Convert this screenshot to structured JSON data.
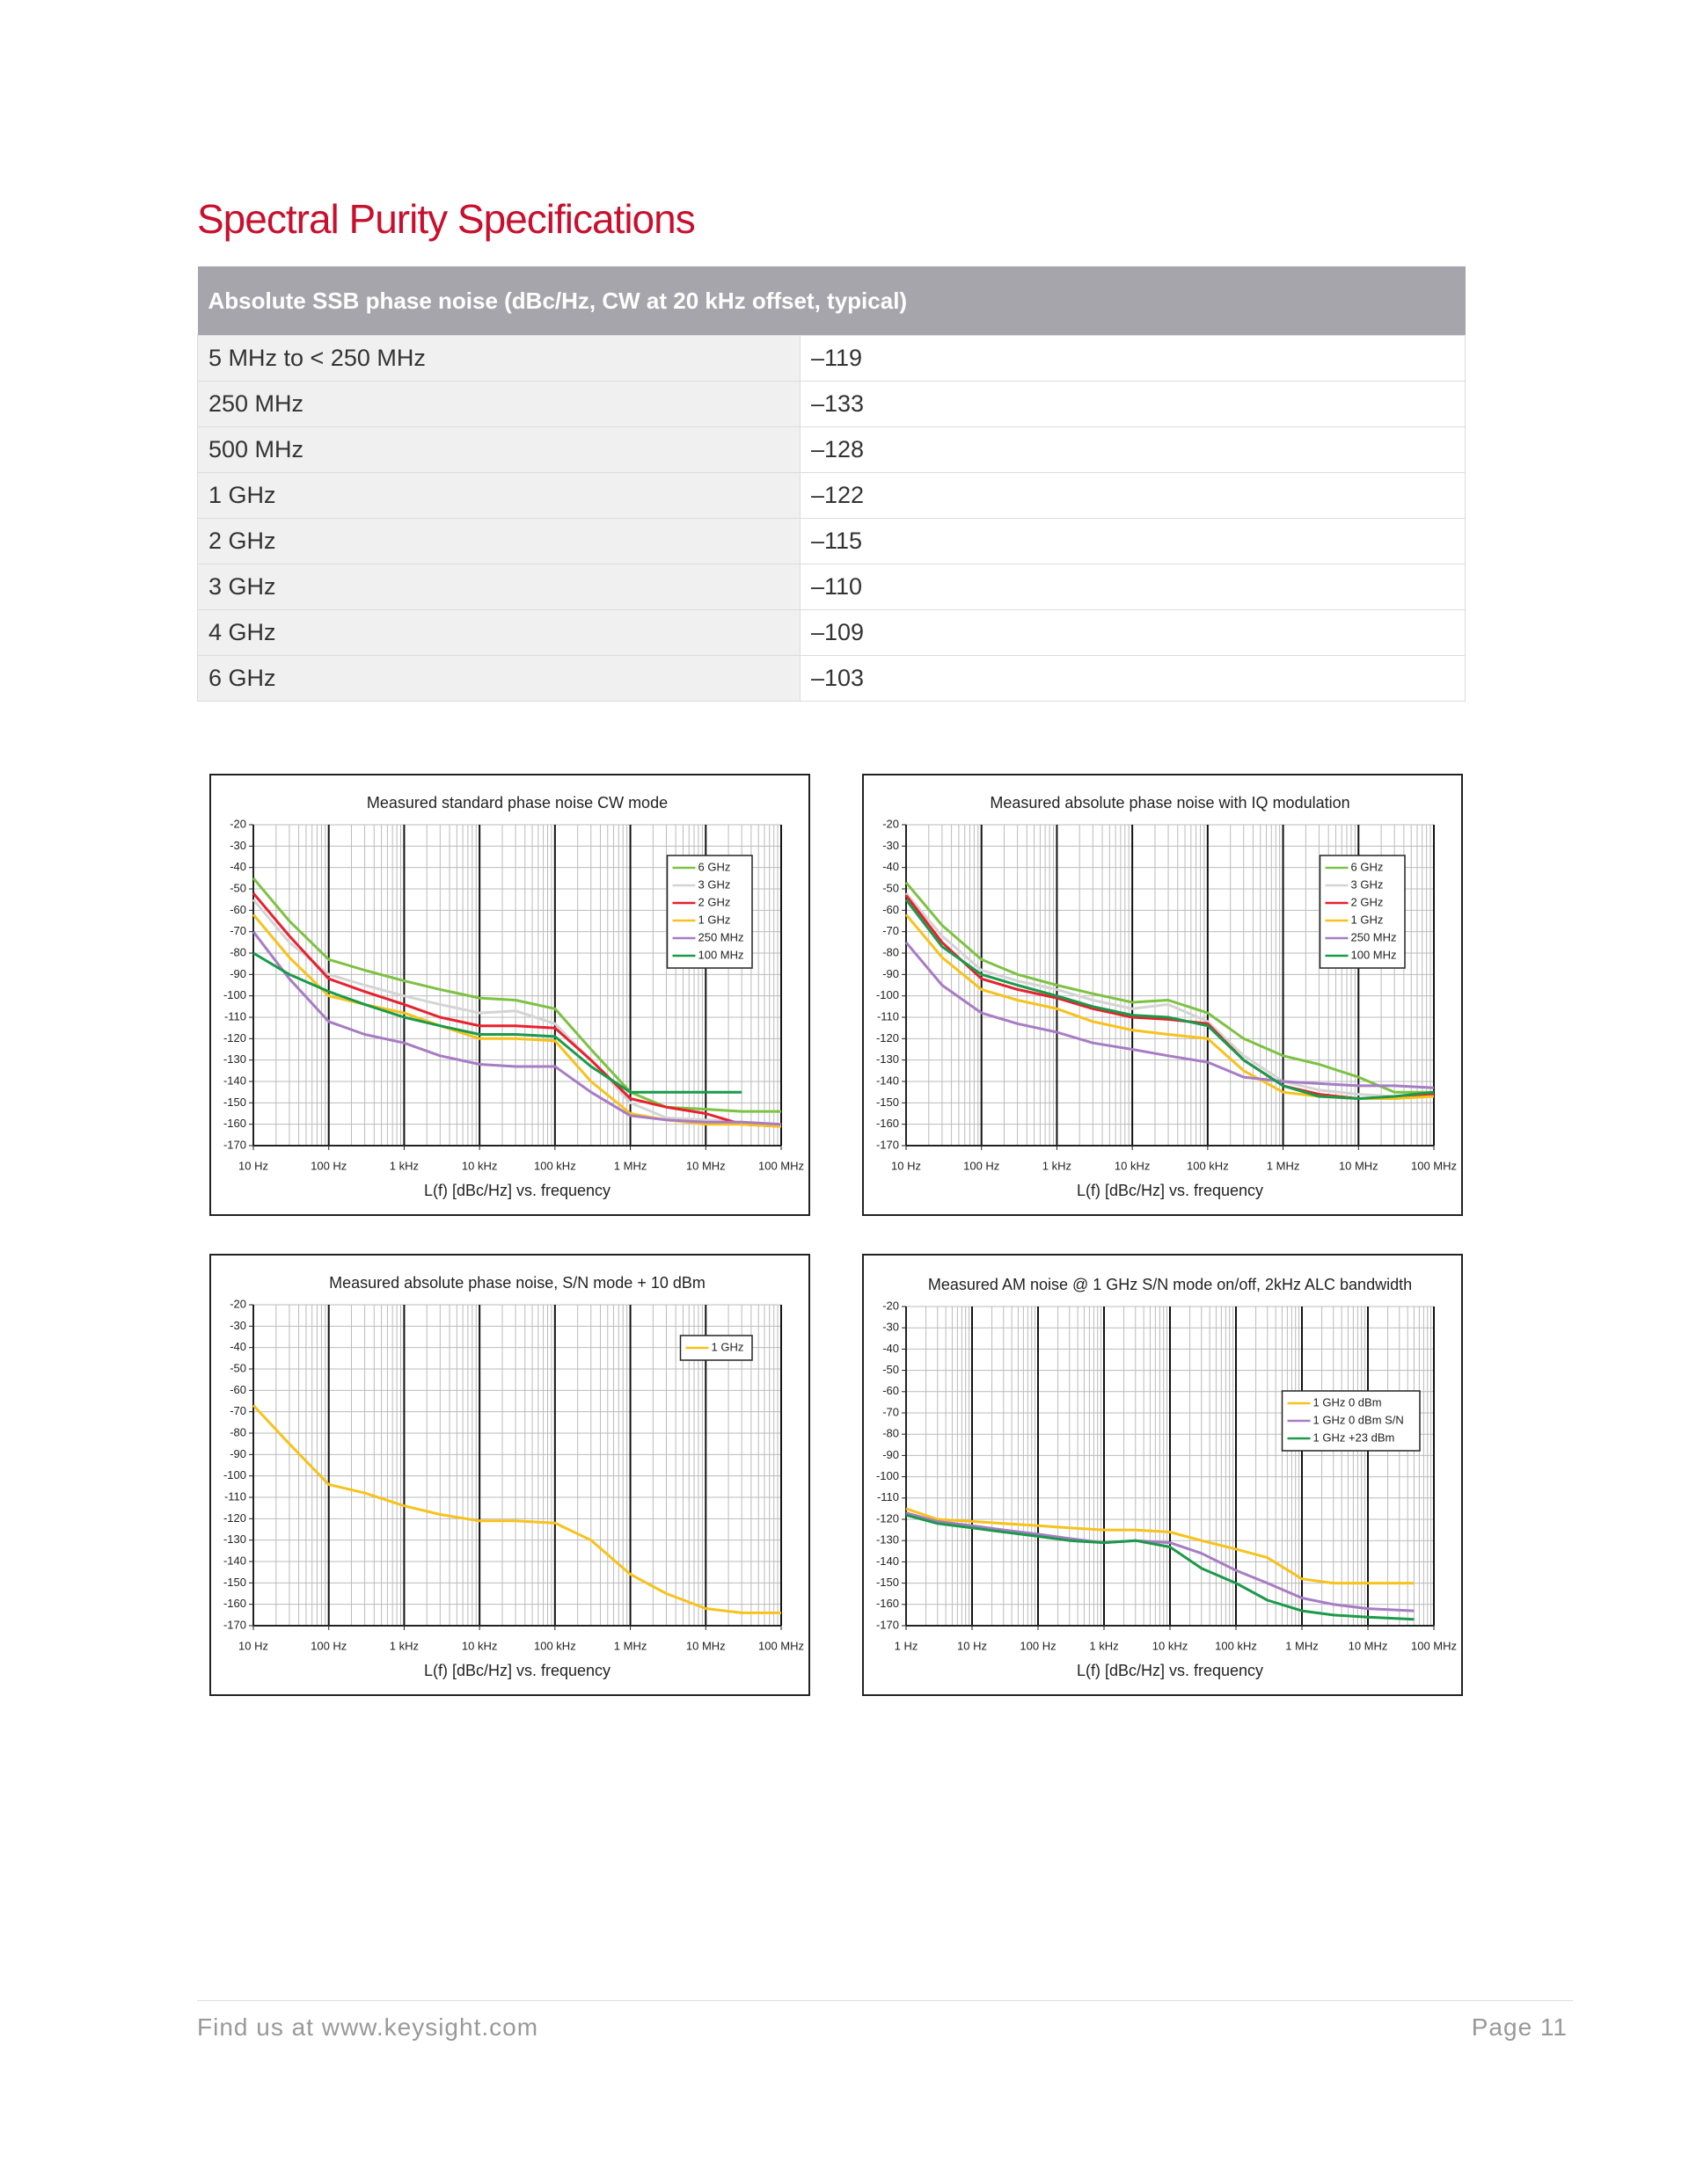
{
  "header": {
    "title": "Spectral Purity Specifications"
  },
  "table": {
    "header": "Absolute SSB phase noise (dBc/Hz, CW at 20 kHz offset, typical)",
    "rows": [
      [
        "5 MHz to < 250 MHz",
        "–119"
      ],
      [
        "250 MHz",
        "–133"
      ],
      [
        "500 MHz",
        "–128"
      ],
      [
        "1 GHz",
        "–122"
      ],
      [
        "2 GHz",
        "–115"
      ],
      [
        "3 GHz",
        "–110"
      ],
      [
        "4 GHz",
        "–109"
      ],
      [
        "6 GHz",
        "–103"
      ]
    ]
  },
  "chart_data": [
    {
      "type": "line",
      "title": "Measured standard phase noise CW mode",
      "xlabel": "L(f) [dBc/Hz] vs. frequency",
      "xscale": "log",
      "grid": true,
      "legend": "upper right",
      "xlim": [
        10,
        100000000
      ],
      "xticks": [
        {
          "value": 10,
          "label": "10 Hz"
        },
        {
          "value": 100,
          "label": "100 Hz"
        },
        {
          "value": 1000,
          "label": "1 kHz"
        },
        {
          "value": 10000,
          "label": "10 kHz"
        },
        {
          "value": 100000,
          "label": "100 kHz"
        },
        {
          "value": 1000000,
          "label": "1 MHz"
        },
        {
          "value": 10000000,
          "label": "10 MHz"
        },
        {
          "value": 100000000,
          "label": "100 MHz"
        }
      ],
      "ylim": [
        -170,
        -20
      ],
      "yticks": [
        -20,
        -30,
        -40,
        -50,
        -60,
        -70,
        -80,
        -90,
        -100,
        -110,
        -120,
        -130,
        -140,
        -150,
        -160,
        -170
      ],
      "x": [
        10,
        30,
        100,
        300,
        1000,
        3000,
        10000,
        30000,
        100000,
        300000,
        1000000,
        3000000,
        10000000,
        30000000,
        100000000
      ],
      "series": [
        {
          "name": "6 GHz",
          "color": "#7dc242",
          "values": [
            -45,
            -65,
            -83,
            -88,
            -93,
            -97,
            -101,
            -102,
            -106,
            -125,
            -145,
            -152,
            -153,
            -154,
            -154
          ]
        },
        {
          "name": "3 GHz",
          "color": "#d4d4d4",
          "values": [
            -55,
            -75,
            -90,
            -95,
            -100,
            -104,
            -108,
            -107,
            -113,
            -130,
            -150,
            -157,
            -158,
            -159,
            -160
          ]
        },
        {
          "name": "2 GHz",
          "color": "#e8212e",
          "values": [
            -52,
            -72,
            -92,
            -98,
            -104,
            -110,
            -114,
            -114,
            -115,
            -130,
            -148,
            -152,
            -155,
            -160,
            -161
          ]
        },
        {
          "name": "1 GHz",
          "color": "#f7c21b",
          "values": [
            -62,
            -82,
            -100,
            -104,
            -108,
            -114,
            -120,
            -120,
            -121,
            -140,
            -155,
            -158,
            -160,
            -160,
            -161
          ]
        },
        {
          "name": "250 MHz",
          "color": "#a77cc4",
          "values": [
            -70,
            -92,
            -112,
            -118,
            -122,
            -128,
            -132,
            -133,
            -133,
            -145,
            -156,
            -158,
            -159,
            -159,
            -160
          ]
        },
        {
          "name": "100 MHz",
          "color": "#1a9a4a",
          "values": [
            -80,
            -90,
            -98,
            -104,
            -110,
            -114,
            -118,
            -118,
            -119,
            -133,
            -145,
            -145,
            -145,
            -145,
            null
          ]
        }
      ]
    },
    {
      "type": "line",
      "title": "Measured absolute phase noise with IQ modulation",
      "xlabel": "L(f) [dBc/Hz] vs. frequency",
      "xscale": "log",
      "grid": true,
      "legend": "upper right",
      "xlim": [
        10,
        100000000
      ],
      "xticks": [
        {
          "value": 10,
          "label": "10 Hz"
        },
        {
          "value": 100,
          "label": "100 Hz"
        },
        {
          "value": 1000,
          "label": "1 kHz"
        },
        {
          "value": 10000,
          "label": "10 kHz"
        },
        {
          "value": 100000,
          "label": "100 kHz"
        },
        {
          "value": 1000000,
          "label": "1 MHz"
        },
        {
          "value": 10000000,
          "label": "10 MHz"
        },
        {
          "value": 100000000,
          "label": "100 MHz"
        }
      ],
      "ylim": [
        -170,
        -20
      ],
      "yticks": [
        -20,
        -30,
        -40,
        -50,
        -60,
        -70,
        -80,
        -90,
        -100,
        -110,
        -120,
        -130,
        -140,
        -150,
        -160,
        -170
      ],
      "x": [
        10,
        30,
        100,
        300,
        1000,
        3000,
        10000,
        30000,
        100000,
        300000,
        1000000,
        3000000,
        10000000,
        30000000,
        100000000
      ],
      "series": [
        {
          "name": "6 GHz",
          "color": "#7dc242",
          "values": [
            -47,
            -67,
            -83,
            -90,
            -95,
            -99,
            -103,
            -102,
            -108,
            -120,
            -128,
            -132,
            -138,
            -145,
            -145
          ]
        },
        {
          "name": "3 GHz",
          "color": "#d4d4d4",
          "values": [
            -52,
            -72,
            -88,
            -93,
            -97,
            -102,
            -106,
            -104,
            -112,
            -128,
            -140,
            -144,
            -146,
            -147,
            -146
          ]
        },
        {
          "name": "2 GHz",
          "color": "#e8212e",
          "values": [
            -53,
            -75,
            -92,
            -97,
            -101,
            -106,
            -110,
            -111,
            -113,
            -130,
            -142,
            -146,
            -148,
            -148,
            -146
          ]
        },
        {
          "name": "1 GHz",
          "color": "#f7c21b",
          "values": [
            -62,
            -82,
            -97,
            -102,
            -106,
            -112,
            -116,
            -118,
            -120,
            -135,
            -145,
            -147,
            -148,
            -148,
            -147
          ]
        },
        {
          "name": "250 MHz",
          "color": "#a77cc4",
          "values": [
            -75,
            -95,
            -108,
            -113,
            -117,
            -122,
            -125,
            -128,
            -131,
            -138,
            -140,
            -141,
            -142,
            -142,
            -143
          ]
        },
        {
          "name": "100 MHz",
          "color": "#1a9a4a",
          "values": [
            -55,
            -77,
            -90,
            -95,
            -100,
            -105,
            -109,
            -110,
            -114,
            -130,
            -142,
            -147,
            -148,
            -147,
            -145
          ]
        }
      ]
    },
    {
      "type": "line",
      "title": "Measured absolute phase noise, S/N mode + 10 dBm",
      "xlabel": "L(f) [dBc/Hz] vs. frequency",
      "xscale": "log",
      "grid": true,
      "legend": "upper right",
      "xlim": [
        10,
        100000000
      ],
      "xticks": [
        {
          "value": 10,
          "label": "10 Hz"
        },
        {
          "value": 100,
          "label": "100 Hz"
        },
        {
          "value": 1000,
          "label": "1 kHz"
        },
        {
          "value": 10000,
          "label": "10 kHz"
        },
        {
          "value": 100000,
          "label": "100 kHz"
        },
        {
          "value": 1000000,
          "label": "1 MHz"
        },
        {
          "value": 10000000,
          "label": "10 MHz"
        },
        {
          "value": 100000000,
          "label": "100 MHz"
        }
      ],
      "ylim": [
        -170,
        -20
      ],
      "yticks": [
        -20,
        -30,
        -40,
        -50,
        -60,
        -70,
        -80,
        -90,
        -100,
        -110,
        -120,
        -130,
        -140,
        -150,
        -160,
        -170
      ],
      "x": [
        10,
        30,
        100,
        300,
        1000,
        3000,
        10000,
        30000,
        100000,
        300000,
        1000000,
        3000000,
        10000000,
        30000000,
        100000000
      ],
      "series": [
        {
          "name": "1 GHz",
          "color": "#f7c21b",
          "values": [
            -67,
            -85,
            -104,
            -108,
            -114,
            -118,
            -121,
            -121,
            -122,
            -130,
            -146,
            -155,
            -162,
            -164,
            -164
          ]
        }
      ]
    },
    {
      "type": "line",
      "title": "Measured AM noise @ 1 GHz S/N mode on/off, 2kHz ALC bandwidth",
      "xlabel": "L(f) [dBc/Hz] vs. frequency",
      "xscale": "log",
      "grid": true,
      "legend": "center right",
      "xlim": [
        1,
        100000000
      ],
      "xticks": [
        {
          "value": 1,
          "label": "1 Hz"
        },
        {
          "value": 10,
          "label": "10 Hz"
        },
        {
          "value": 100,
          "label": "100 Hz"
        },
        {
          "value": 1000,
          "label": "1 kHz"
        },
        {
          "value": 10000,
          "label": "10 kHz"
        },
        {
          "value": 100000,
          "label": "100 kHz"
        },
        {
          "value": 1000000,
          "label": "1 MHz"
        },
        {
          "value": 10000000,
          "label": "10 MHz"
        },
        {
          "value": 100000000,
          "label": "100 MHz"
        }
      ],
      "ylim": [
        -170,
        -20
      ],
      "yticks": [
        -20,
        -30,
        -40,
        -50,
        -60,
        -70,
        -80,
        -90,
        -100,
        -110,
        -120,
        -130,
        -140,
        -150,
        -160,
        -170
      ],
      "x": [
        1,
        3,
        10,
        30,
        100,
        300,
        1000,
        3000,
        10000,
        30000,
        100000,
        300000,
        1000000,
        3000000,
        10000000,
        50000000
      ],
      "series": [
        {
          "name": "1 GHz 0 dBm",
          "color": "#f7c21b",
          "values": [
            -115,
            -120,
            -121,
            -122,
            -123,
            -124,
            -125,
            -125,
            -126,
            -130,
            -134,
            -138,
            -148,
            -150,
            -150,
            -150
          ]
        },
        {
          "name": "1 GHz 0 dBm S/N",
          "color": "#a77cc4",
          "values": [
            -117,
            -121,
            -123,
            -125,
            -127,
            -129,
            -131,
            -130,
            -131,
            -136,
            -144,
            -150,
            -157,
            -160,
            -162,
            -163
          ]
        },
        {
          "name": "1 GHz +23 dBm",
          "color": "#1a9a4a",
          "values": [
            -118,
            -122,
            -124,
            -126,
            -128,
            -130,
            -131,
            -130,
            -133,
            -143,
            -150,
            -158,
            -163,
            -165,
            -166,
            -167
          ]
        }
      ]
    }
  ],
  "footer": {
    "left": "Find us at www.keysight.com",
    "right": "Page 11"
  }
}
